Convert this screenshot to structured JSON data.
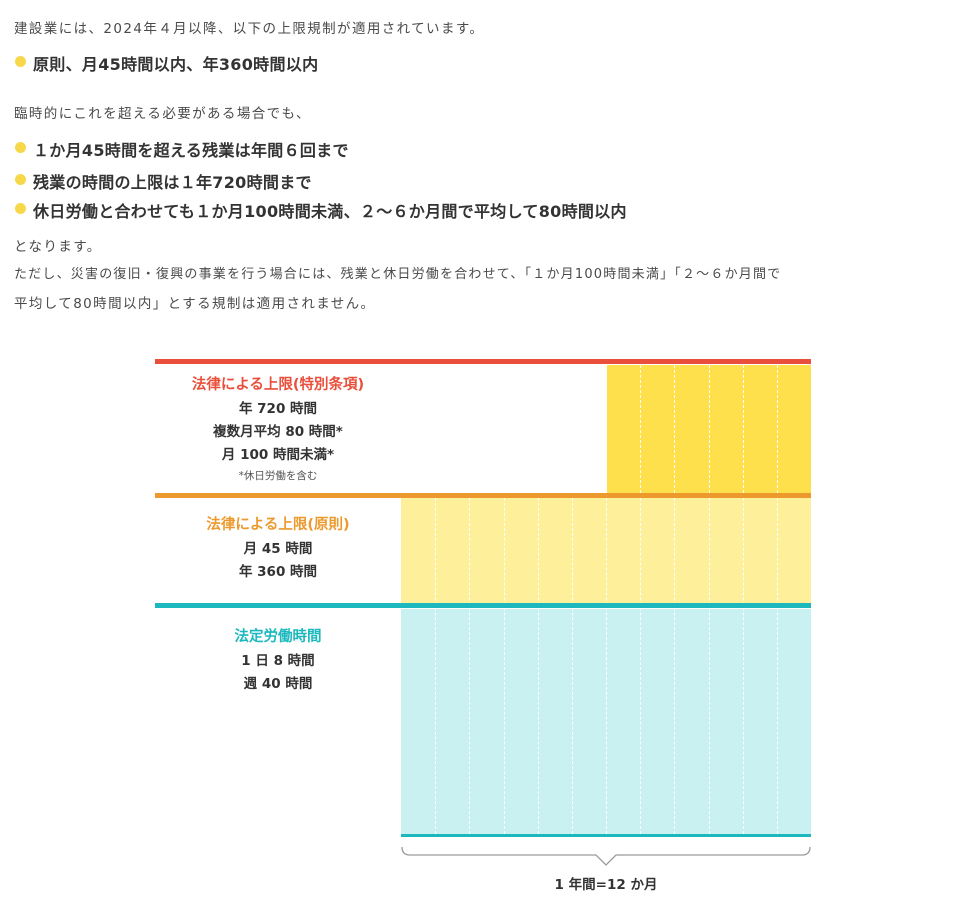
{
  "intro": "建設業には、2024年４月以降、以下の上限規制が適用されています。",
  "rule_principle": "原則、月45時間以内、年360時間以内",
  "special_intro": "臨時的にこれを超える必要がある場合でも、",
  "special_rules": [
    "１か月45時間を超える残業は年間６回まで",
    "残業の時間の上限は１年720時間まで",
    "休日労働と合わせても１か月100時間未満、２～６か月間で平均して80時間以内"
  ],
  "conclusion": "となります。",
  "exception_line1": "ただし、災害の復旧・復興の事業を行う場合には、残業と休日労働を合わせて、「１か月100時間未満」「２～６か月間で",
  "exception_line2": "平均して80時間以内」とする規制は適用されません。",
  "chart": {
    "special": {
      "title": "法律による上限(特別条項)",
      "lines": [
        "年 720 時間",
        "複数月平均 80 時間*",
        "月 100 時間未満*"
      ],
      "note": "*休日労働を含む"
    },
    "principle": {
      "title": "法律による上限(原則)",
      "lines": [
        "月 45 時間",
        "年 360 時間"
      ]
    },
    "statutory": {
      "title": "法定労働時間",
      "lines": [
        "1 日 8 時間",
        "週 40 時間"
      ]
    },
    "x_axis_label": "1 年間=12 か月",
    "colors": {
      "red": "#e94f3b",
      "orange": "#ec9a2e",
      "teal": "#1cb8bd",
      "special_fill": "#fde04c",
      "principle_fill": "#fef09a",
      "statutory_fill": "#c9f1f1"
    }
  }
}
